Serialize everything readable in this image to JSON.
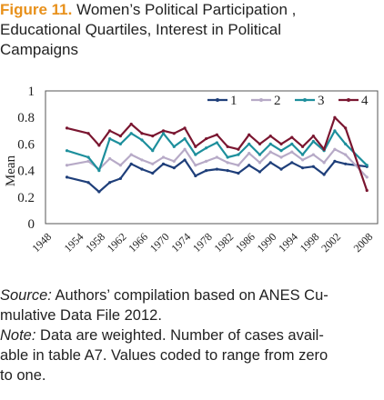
{
  "title": {
    "figure_label": "Figure 11.",
    "line1": " Women’s Political Participation ,",
    "line2": "Educational Quartiles, Interest in Political",
    "line3": "Campaigns"
  },
  "notes": {
    "source_label": "Source:",
    "source_line1": " Authors’ compilation based on ANES Cu-",
    "source_line2": "mulative Data File 2012.",
    "note_label": "Note:",
    "note_line1": " Data are weighted. Number of cases avail-",
    "note_line2": "able in table A7. Values coded to range from zero",
    "note_line3": "to one."
  },
  "chart_data": {
    "type": "line",
    "ylabel": "Mean",
    "xlabel": "",
    "ylim": [
      0,
      1
    ],
    "yticks": [
      "0",
      "0.2",
      "0.4",
      "0.6",
      "0.8",
      "1"
    ],
    "x": [
      1952,
      1956,
      1958,
      1960,
      1962,
      1964,
      1966,
      1968,
      1970,
      1972,
      1974,
      1976,
      1978,
      1980,
      1982,
      1984,
      1986,
      1988,
      1990,
      1992,
      1994,
      1996,
      1998,
      2000,
      2002,
      2004,
      2008
    ],
    "xtick_labels": [
      "1948",
      "1954",
      "1958",
      "1962",
      "1966",
      "1970",
      "1974",
      "1978",
      "1982",
      "1986",
      "1990",
      "1994",
      "1998",
      "2002",
      "2008"
    ],
    "legend_position": "top-right",
    "series": [
      {
        "name": "1",
        "color": "#1f3f7a",
        "values": [
          0.35,
          0.31,
          0.24,
          0.31,
          0.34,
          0.45,
          0.41,
          0.38,
          0.45,
          0.42,
          0.48,
          0.36,
          0.4,
          0.41,
          0.4,
          0.38,
          0.44,
          0.39,
          0.46,
          0.41,
          0.46,
          0.42,
          0.43,
          0.37,
          0.47,
          0.45,
          0.43
        ]
      },
      {
        "name": "2",
        "color": "#b7aac7",
        "values": [
          0.44,
          0.47,
          0.41,
          0.49,
          0.44,
          0.52,
          0.48,
          0.45,
          0.5,
          0.47,
          0.56,
          0.44,
          0.47,
          0.5,
          0.46,
          0.44,
          0.53,
          0.46,
          0.54,
          0.5,
          0.54,
          0.48,
          0.52,
          0.46,
          0.56,
          0.52,
          0.35
        ]
      },
      {
        "name": "3",
        "color": "#1d8f9c",
        "values": [
          0.55,
          0.5,
          0.4,
          0.64,
          0.6,
          0.68,
          0.63,
          0.55,
          0.68,
          0.58,
          0.64,
          0.52,
          0.57,
          0.61,
          0.5,
          0.52,
          0.6,
          0.52,
          0.6,
          0.55,
          0.6,
          0.52,
          0.62,
          0.55,
          0.7,
          0.6,
          0.44
        ]
      },
      {
        "name": "4",
        "color": "#7a1630",
        "values": [
          0.72,
          0.68,
          0.59,
          0.7,
          0.66,
          0.75,
          0.68,
          0.66,
          0.7,
          0.68,
          0.72,
          0.58,
          0.64,
          0.67,
          0.58,
          0.56,
          0.67,
          0.6,
          0.66,
          0.6,
          0.65,
          0.58,
          0.66,
          0.56,
          0.8,
          0.72,
          0.25
        ]
      }
    ]
  }
}
